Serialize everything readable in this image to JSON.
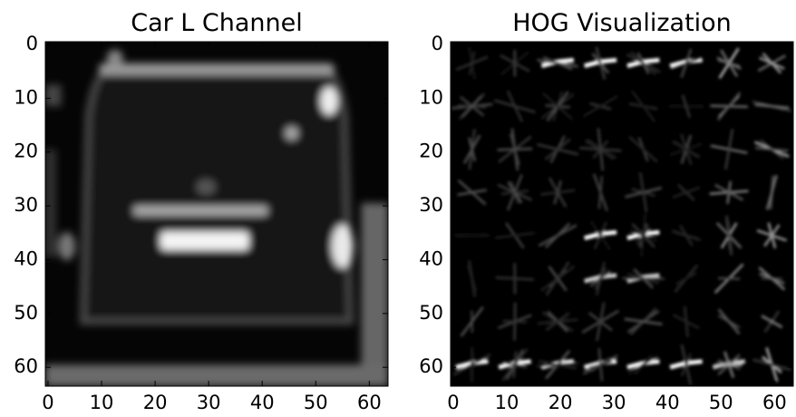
{
  "chart_data": [
    {
      "type": "image",
      "title": "Car L Channel",
      "xlim": [
        -0.5,
        63.5
      ],
      "ylim": [
        63.5,
        -0.5
      ],
      "xticks": [
        0,
        10,
        20,
        30,
        40,
        50,
        60
      ],
      "yticks": [
        0,
        10,
        20,
        30,
        40,
        50,
        60
      ]
    },
    {
      "type": "image",
      "title": "HOG Visualization",
      "xlim": [
        -0.5,
        63.5
      ],
      "ylim": [
        63.5,
        -0.5
      ],
      "xticks": [
        0,
        10,
        20,
        30,
        40,
        50,
        60
      ],
      "yticks": [
        0,
        10,
        20,
        30,
        40,
        50,
        60
      ]
    }
  ]
}
